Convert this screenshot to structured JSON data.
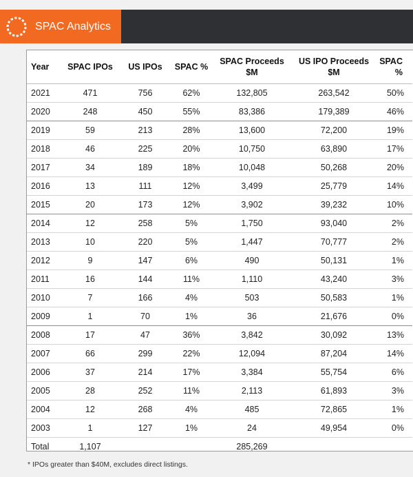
{
  "header": {
    "brand": "SPAC Analytics",
    "brand_color": "#f26a21",
    "logo_icon": "dashed-circle-icon"
  },
  "table": {
    "columns": [
      "Year",
      "SPAC IPOs",
      "US IPOs",
      "SPAC %",
      "SPAC Proceeds $M",
      "US IPO Proceeds $M",
      "SPAC %"
    ],
    "header_labels": {
      "year": "Year",
      "spac_ipos": "SPAC IPOs",
      "us_ipos": "US IPOs",
      "spac_pct": "SPAC %",
      "spac_proceeds_1": "SPAC Proceeds",
      "spac_proceeds_2": "$M",
      "us_proceeds_1": "US IPO Proceeds",
      "us_proceeds_2": "$M",
      "spac_pct2_1": "SPAC",
      "spac_pct2_2": "%"
    },
    "rows": [
      [
        "2021",
        "471",
        "756",
        "62%",
        "132,805",
        "263,542",
        "50%"
      ],
      [
        "2020",
        "248",
        "450",
        "55%",
        "83,386",
        "179,389",
        "46%"
      ],
      [
        "2019",
        "59",
        "213",
        "28%",
        "13,600",
        "72,200",
        "19%"
      ],
      [
        "2018",
        "46",
        "225",
        "20%",
        "10,750",
        "63,890",
        "17%"
      ],
      [
        "2017",
        "34",
        "189",
        "18%",
        "10,048",
        "50,268",
        "20%"
      ],
      [
        "2016",
        "13",
        "111",
        "12%",
        "3,499",
        "25,779",
        "14%"
      ],
      [
        "2015",
        "20",
        "173",
        "12%",
        "3,902",
        "39,232",
        "10%"
      ],
      [
        "2014",
        "12",
        "258",
        "5%",
        "1,750",
        "93,040",
        "2%"
      ],
      [
        "2013",
        "10",
        "220",
        "5%",
        "1,447",
        "70,777",
        "2%"
      ],
      [
        "2012",
        "9",
        "147",
        "6%",
        "490",
        "50,131",
        "1%"
      ],
      [
        "2011",
        "16",
        "144",
        "11%",
        "1,110",
        "43,240",
        "3%"
      ],
      [
        "2010",
        "7",
        "166",
        "4%",
        "503",
        "50,583",
        "1%"
      ],
      [
        "2009",
        "1",
        "70",
        "1%",
        "36",
        "21,676",
        "0%"
      ],
      [
        "2008",
        "17",
        "47",
        "36%",
        "3,842",
        "30,092",
        "13%"
      ],
      [
        "2007",
        "66",
        "299",
        "22%",
        "12,094",
        "87,204",
        "14%"
      ],
      [
        "2006",
        "37",
        "214",
        "17%",
        "3,384",
        "55,754",
        "6%"
      ],
      [
        "2005",
        "28",
        "252",
        "11%",
        "2,113",
        "61,893",
        "3%"
      ],
      [
        "2004",
        "12",
        "268",
        "4%",
        "485",
        "72,865",
        "1%"
      ],
      [
        "2003",
        "1",
        "127",
        "1%",
        "24",
        "49,954",
        "0%"
      ]
    ],
    "total": [
      "Total",
      "1,107",
      "",
      "",
      "285,269",
      "",
      ""
    ]
  },
  "footnote": "* IPOs greater than $40M, excludes direct listings."
}
